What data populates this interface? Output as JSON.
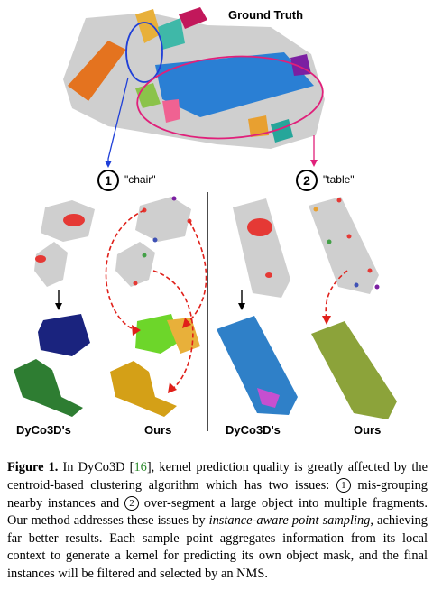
{
  "figure": {
    "ground_truth_label": "Ground Truth",
    "marker_1": {
      "num": "1",
      "text": "\"chair\""
    },
    "marker_2": {
      "num": "2",
      "text": "\"table\""
    },
    "col_labels": [
      "DyCo3D's",
      "Ours",
      "DyCo3D's",
      "Ours"
    ]
  },
  "caption": {
    "fig_label": "Figure 1.",
    "p1": " In DyCo3D [",
    "ref": "16",
    "p2": "], kernel prediction quality is greatly affected by the centroid-based clustering algorithm which has two issues: ",
    "n1": "1",
    "p3": " mis-grouping nearby instances and ",
    "n2": "2",
    "p4": " over-segment a large object into multiple fragments.  Our method addresses these issues by ",
    "emph": "instance-aware point sampling",
    "p5": ", achieving far better results. Each sample point aggregates information from its local context to generate a kernel for predicting its own object mask, and the final instances will be filtered and selected by an NMS."
  },
  "colors": {
    "blue_arrow": "#1f3fd8",
    "pink_arrow": "#e0207a",
    "red_dash": "#e0201a",
    "link": "#2e8b2e"
  }
}
